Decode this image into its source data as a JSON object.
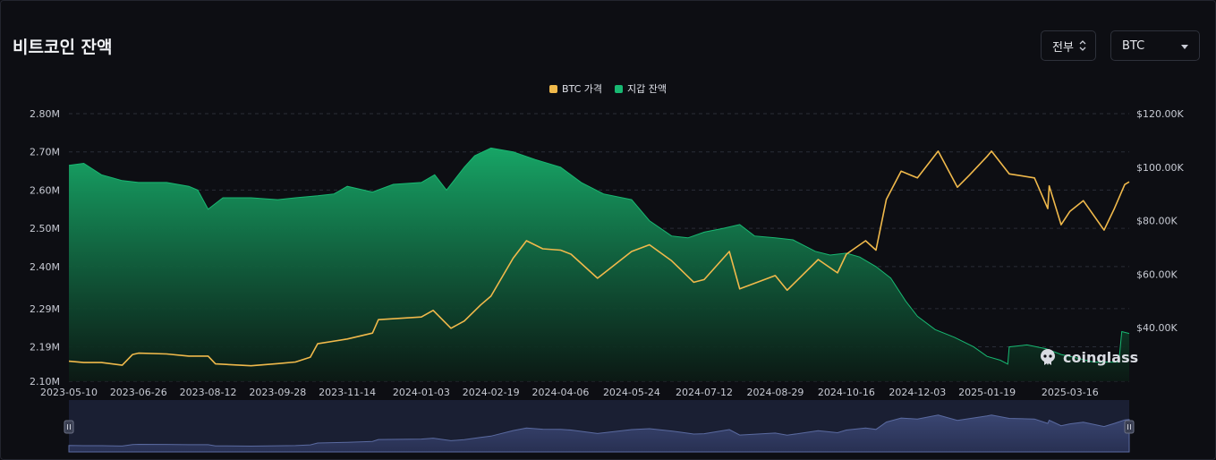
{
  "header": {
    "title": "비트코인 잔액",
    "range_select": "전부",
    "coin_select": "BTC"
  },
  "legend": [
    {
      "label": "BTC 가격",
      "color": "#f0b94b"
    },
    {
      "label": "지갑 잔액",
      "color": "#18b872"
    }
  ],
  "watermark": "coinglass",
  "colors": {
    "price": "#f0b94b",
    "balance": "#18b872",
    "navigator": "#2a3250"
  },
  "chart_data": {
    "type": "area",
    "title": "",
    "x_tick_labels": [
      "2023-05-10",
      "2023-06-26",
      "2023-08-12",
      "2023-09-28",
      "2023-11-14",
      "2024-01-03",
      "2024-02-19",
      "2024-04-06",
      "2024-05-24",
      "2024-07-12",
      "2024-08-29",
      "2024-10-16",
      "2024-12-03",
      "2025-01-19",
      "2025-03-16"
    ],
    "left_axis": {
      "tick_labels": [
        "2.10M",
        "2.19M",
        "2.29M",
        "2.40M",
        "2.50M",
        "2.60M",
        "2.70M",
        "2.80M"
      ],
      "ylim": [
        2100000,
        2800000
      ]
    },
    "right_axis": {
      "tick_labels": [
        "$40.00K",
        "$60.00K",
        "$80.00K",
        "$100.00K",
        "$120.00K"
      ],
      "ylim": [
        20000,
        120000
      ]
    },
    "grid": true,
    "legend_position": "top-center",
    "x_range": [
      "2023-05-10",
      "2025-04-25"
    ],
    "series": [
      {
        "name": "지갑 잔액",
        "axis": "left",
        "style": "area",
        "points": [
          [
            "2023-05-10",
            2665000
          ],
          [
            "2023-05-20",
            2670000
          ],
          [
            "2023-06-01",
            2640000
          ],
          [
            "2023-06-15",
            2625000
          ],
          [
            "2023-06-26",
            2620000
          ],
          [
            "2023-07-15",
            2620000
          ],
          [
            "2023-07-30",
            2610000
          ],
          [
            "2023-08-05",
            2600000
          ],
          [
            "2023-08-12",
            2550000
          ],
          [
            "2023-08-22",
            2580000
          ],
          [
            "2023-09-10",
            2580000
          ],
          [
            "2023-09-28",
            2575000
          ],
          [
            "2023-10-10",
            2580000
          ],
          [
            "2023-10-25",
            2585000
          ],
          [
            "2023-11-05",
            2590000
          ],
          [
            "2023-11-14",
            2610000
          ],
          [
            "2023-12-01",
            2595000
          ],
          [
            "2023-12-15",
            2615000
          ],
          [
            "2024-01-03",
            2620000
          ],
          [
            "2024-01-12",
            2640000
          ],
          [
            "2024-01-20",
            2600000
          ],
          [
            "2024-02-01",
            2660000
          ],
          [
            "2024-02-08",
            2690000
          ],
          [
            "2024-02-19",
            2710000
          ],
          [
            "2024-03-05",
            2700000
          ],
          [
            "2024-03-20",
            2680000
          ],
          [
            "2024-04-06",
            2660000
          ],
          [
            "2024-04-20",
            2620000
          ],
          [
            "2024-05-05",
            2590000
          ],
          [
            "2024-05-24",
            2575000
          ],
          [
            "2024-06-05",
            2520000
          ],
          [
            "2024-06-20",
            2480000
          ],
          [
            "2024-07-01",
            2475000
          ],
          [
            "2024-07-12",
            2490000
          ],
          [
            "2024-07-25",
            2500000
          ],
          [
            "2024-08-05",
            2510000
          ],
          [
            "2024-08-15",
            2480000
          ],
          [
            "2024-08-29",
            2475000
          ],
          [
            "2024-09-10",
            2470000
          ],
          [
            "2024-09-25",
            2440000
          ],
          [
            "2024-10-05",
            2430000
          ],
          [
            "2024-10-16",
            2435000
          ],
          [
            "2024-10-25",
            2425000
          ],
          [
            "2024-11-05",
            2400000
          ],
          [
            "2024-11-15",
            2370000
          ],
          [
            "2024-11-25",
            2310000
          ],
          [
            "2024-12-03",
            2270000
          ],
          [
            "2024-12-15",
            2235000
          ],
          [
            "2024-12-28",
            2215000
          ],
          [
            "2025-01-10",
            2190000
          ],
          [
            "2025-01-19",
            2165000
          ],
          [
            "2025-01-28",
            2155000
          ],
          [
            "2025-02-02",
            2145000
          ],
          [
            "2025-02-03",
            2190000
          ],
          [
            "2025-02-15",
            2195000
          ],
          [
            "2025-02-28",
            2185000
          ],
          [
            "2025-03-10",
            2170000
          ],
          [
            "2025-03-16",
            2165000
          ],
          [
            "2025-04-01",
            2150000
          ],
          [
            "2025-04-18",
            2150000
          ],
          [
            "2025-04-20",
            2230000
          ],
          [
            "2025-04-25",
            2225000
          ]
        ]
      },
      {
        "name": "BTC 가격",
        "axis": "right",
        "style": "line",
        "points": [
          [
            "2023-05-10",
            27500
          ],
          [
            "2023-05-20",
            27000
          ],
          [
            "2023-06-01",
            27000
          ],
          [
            "2023-06-15",
            26000
          ],
          [
            "2023-06-22",
            30000
          ],
          [
            "2023-06-26",
            30500
          ],
          [
            "2023-07-15",
            30200
          ],
          [
            "2023-07-30",
            29400
          ],
          [
            "2023-08-12",
            29400
          ],
          [
            "2023-08-17",
            26500
          ],
          [
            "2023-09-10",
            25800
          ],
          [
            "2023-09-28",
            26600
          ],
          [
            "2023-10-10",
            27200
          ],
          [
            "2023-10-20",
            29000
          ],
          [
            "2023-10-25",
            34000
          ],
          [
            "2023-11-14",
            35800
          ],
          [
            "2023-12-01",
            38000
          ],
          [
            "2023-12-05",
            43000
          ],
          [
            "2024-01-03",
            44000
          ],
          [
            "2024-01-11",
            46500
          ],
          [
            "2024-01-23",
            39800
          ],
          [
            "2024-02-01",
            42500
          ],
          [
            "2024-02-12",
            48500
          ],
          [
            "2024-02-19",
            51800
          ],
          [
            "2024-03-05",
            66000
          ],
          [
            "2024-03-14",
            72500
          ],
          [
            "2024-03-25",
            69500
          ],
          [
            "2024-04-06",
            69000
          ],
          [
            "2024-04-13",
            67500
          ],
          [
            "2024-04-20",
            64000
          ],
          [
            "2024-05-01",
            58500
          ],
          [
            "2024-05-24",
            68500
          ],
          [
            "2024-06-05",
            71000
          ],
          [
            "2024-06-20",
            65000
          ],
          [
            "2024-07-05",
            57000
          ],
          [
            "2024-07-12",
            58000
          ],
          [
            "2024-07-29",
            68500
          ],
          [
            "2024-08-05",
            54500
          ],
          [
            "2024-08-29",
            59500
          ],
          [
            "2024-09-06",
            54000
          ],
          [
            "2024-09-27",
            65500
          ],
          [
            "2024-10-10",
            60500
          ],
          [
            "2024-10-16",
            67500
          ],
          [
            "2024-10-29",
            72500
          ],
          [
            "2024-11-05",
            69000
          ],
          [
            "2024-11-12",
            88000
          ],
          [
            "2024-11-22",
            98500
          ],
          [
            "2024-12-03",
            96000
          ],
          [
            "2024-12-17",
            106000
          ],
          [
            "2024-12-30",
            92500
          ],
          [
            "2025-01-07",
            97000
          ],
          [
            "2025-01-19",
            104000
          ],
          [
            "2025-01-22",
            106000
          ],
          [
            "2025-02-03",
            97500
          ],
          [
            "2025-02-20",
            96000
          ],
          [
            "2025-03-01",
            84500
          ],
          [
            "2025-03-02",
            93000
          ],
          [
            "2025-03-10",
            78500
          ],
          [
            "2025-03-16",
            83500
          ],
          [
            "2025-03-25",
            87500
          ],
          [
            "2025-04-08",
            76500
          ],
          [
            "2025-04-15",
            84500
          ],
          [
            "2025-04-22",
            93500
          ],
          [
            "2025-04-25",
            94500
          ]
        ]
      }
    ],
    "navigator": {
      "present": true
    }
  }
}
